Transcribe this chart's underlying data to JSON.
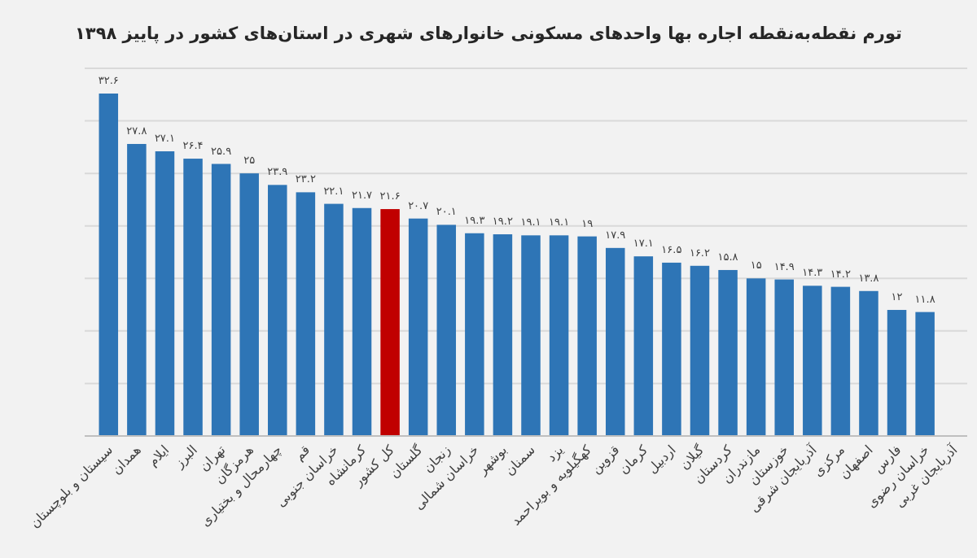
{
  "chart_data": {
    "type": "bar",
    "title": "تورم نقطه‌به‌نقطه اجاره بها واحدهای مسکونی خانوارهای شهری در استان‌های کشور در پاییز ۱۳۹۸",
    "categories": [
      "سیستان و بلوچستان",
      "همدان",
      "ایلام",
      "البرز",
      "تهران",
      "هرمزگان",
      "چهارمحال و بختیاری",
      "قم",
      "خراسان جنوبی",
      "کرمانشاه",
      "کل کشور",
      "گلستان",
      "زنجان",
      "خراسان شمالی",
      "بوشهر",
      "سمنان",
      "یزد",
      "کهگیلویه و بویراحمد",
      "قزوین",
      "کرمان",
      "اردبیل",
      "گیلان",
      "کردستان",
      "مازندران",
      "خوزستان",
      "آذربایجان شرقی",
      "مرکزی",
      "اصفهان",
      "فارس",
      "خراسان رضوی",
      "آذربایجان غربی"
    ],
    "values": [
      32.6,
      27.8,
      27.1,
      26.4,
      25.9,
      25,
      23.9,
      23.2,
      22.1,
      21.7,
      21.6,
      20.7,
      20.1,
      19.3,
      19.2,
      19.1,
      19.1,
      19,
      17.9,
      17.1,
      16.5,
      16.2,
      15.8,
      15,
      14.9,
      14.3,
      14.2,
      13.8,
      12,
      11.8,
      null
    ],
    "value_labels": [
      "۳۲.۶",
      "۲۷.۸",
      "۲۷.۱",
      "۲۶.۴",
      "۲۵.۹",
      "۲۵",
      "۲۳.۹",
      "۲۳.۲",
      "۲۲.۱",
      "۲۱.۷",
      "۲۱.۶",
      "۲۰.۷",
      "۲۰.۱",
      "۱۹.۳",
      "۱۹.۲",
      "۱۹.۱",
      "۱۹.۱",
      "۱۹",
      "۱۷.۹",
      "۱۷.۱",
      "۱۶.۵",
      "۱۶.۲",
      "۱۵.۸",
      "۱۵",
      "۱۴.۹",
      "۱۴.۳",
      "۱۴.۲",
      "۱۳.۸",
      "۱۲",
      "۱۱.۸",
      null
    ],
    "colors": [
      "#2e75b6",
      "#2e75b6",
      "#2e75b6",
      "#2e75b6",
      "#2e75b6",
      "#2e75b6",
      "#2e75b6",
      "#2e75b6",
      "#2e75b6",
      "#2e75b6",
      "#c00000",
      "#2e75b6",
      "#2e75b6",
      "#2e75b6",
      "#2e75b6",
      "#2e75b6",
      "#2e75b6",
      "#2e75b6",
      "#2e75b6",
      "#2e75b6",
      "#2e75b6",
      "#2e75b6",
      "#2e75b6",
      "#2e75b6",
      "#2e75b6",
      "#2e75b6",
      "#2e75b6",
      "#2e75b6",
      "#2e75b6",
      "#2e75b6",
      null
    ],
    "ylim": [
      0,
      35
    ],
    "yticks": [
      {
        "value": 0,
        "label": null
      },
      {
        "value": 5,
        "label": null
      },
      {
        "value": 10,
        "label": null
      },
      {
        "value": 15,
        "label": null
      },
      {
        "value": 20,
        "label": null
      },
      {
        "value": 25,
        "label": null
      },
      {
        "value": 30,
        "label": null
      },
      {
        "value": 35,
        "label": null
      }
    ],
    "tick_labels": "x",
    "grid": "y"
  }
}
